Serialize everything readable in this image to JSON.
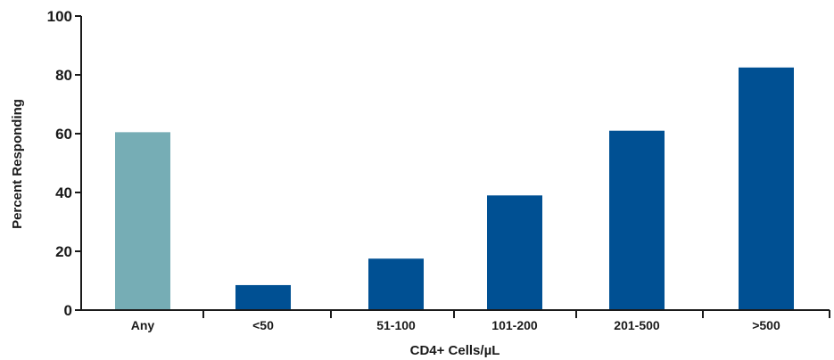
{
  "chart_data": {
    "type": "bar",
    "categories": [
      "Any",
      "<50",
      "51-100",
      "101-200",
      "201-500",
      ">500"
    ],
    "values": [
      60.5,
      8.5,
      17.5,
      39,
      61,
      82.5
    ],
    "colors": [
      "#76adb5",
      "#005093",
      "#005093",
      "#005093",
      "#005093",
      "#005093"
    ],
    "xlabel": "CD4+ Cells/µL",
    "ylabel": "Percent Responding",
    "ylim": [
      0,
      100
    ],
    "yticks": [
      0,
      20,
      40,
      60,
      80,
      100
    ],
    "grid": false,
    "legend": "none"
  }
}
